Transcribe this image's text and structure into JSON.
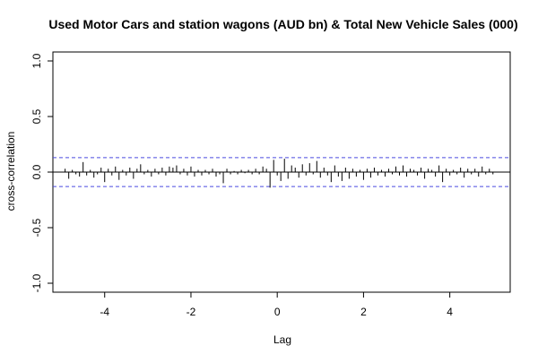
{
  "chart_data": {
    "type": "bar",
    "title": "Used Motor Cars and station wagons (AUD bn) & Total New Vehicle Sales (000)",
    "xlabel": "Lag",
    "ylabel": "cross-correlation",
    "xlim": [
      -5.2,
      5.4
    ],
    "ylim": [
      -1.05,
      1.05
    ],
    "x_ticks": [
      -4,
      -2,
      0,
      2,
      4
    ],
    "y_ticks": [
      -1.0,
      -0.5,
      0.0,
      0.5,
      1.0
    ],
    "x_tick_labels": [
      "-4",
      "-2",
      "0",
      "2",
      "4"
    ],
    "y_tick_labels": [
      "-1.0",
      "-0.5",
      "0.0",
      "0.5",
      "1.0"
    ],
    "confidence_bound": 0.13,
    "confidence_line_color": "#4a4ae0",
    "zero_line": true,
    "grid": false,
    "lag_step": 0.0833,
    "x": [
      -4.917,
      -4.833,
      -4.75,
      -4.667,
      -4.583,
      -4.5,
      -4.417,
      -4.333,
      -4.25,
      -4.167,
      -4.083,
      -4.0,
      -3.917,
      -3.833,
      -3.75,
      -3.667,
      -3.583,
      -3.5,
      -3.417,
      -3.333,
      -3.25,
      -3.167,
      -3.083,
      -3.0,
      -2.917,
      -2.833,
      -2.75,
      -2.667,
      -2.583,
      -2.5,
      -2.417,
      -2.333,
      -2.25,
      -2.167,
      -2.083,
      -2.0,
      -1.917,
      -1.833,
      -1.75,
      -1.667,
      -1.583,
      -1.5,
      -1.417,
      -1.333,
      -1.25,
      -1.167,
      -1.083,
      -1.0,
      -0.917,
      -0.833,
      -0.75,
      -0.667,
      -0.583,
      -0.5,
      -0.417,
      -0.333,
      -0.25,
      -0.167,
      -0.083,
      0.0,
      0.083,
      0.167,
      0.25,
      0.333,
      0.417,
      0.5,
      0.583,
      0.667,
      0.75,
      0.833,
      0.917,
      1.0,
      1.083,
      1.167,
      1.25,
      1.333,
      1.417,
      1.5,
      1.583,
      1.667,
      1.75,
      1.833,
      1.917,
      2.0,
      2.083,
      2.167,
      2.25,
      2.333,
      2.417,
      2.5,
      2.583,
      2.667,
      2.75,
      2.833,
      2.917,
      3.0,
      3.083,
      3.167,
      3.25,
      3.333,
      3.417,
      3.5,
      3.583,
      3.667,
      3.75,
      3.833,
      3.917,
      4.0,
      4.083,
      4.167,
      4.25,
      4.333,
      4.417,
      4.5,
      4.583,
      4.667,
      4.75,
      4.833,
      4.917,
      5.0
    ],
    "values": [
      0.03,
      -0.06,
      0.02,
      -0.02,
      -0.04,
      0.09,
      -0.03,
      0.02,
      -0.05,
      -0.02,
      0.04,
      -0.09,
      0.03,
      -0.03,
      0.05,
      -0.07,
      0.02,
      -0.03,
      0.04,
      -0.06,
      0.03,
      0.07,
      -0.02,
      0.02,
      -0.04,
      0.03,
      -0.02,
      0.04,
      -0.03,
      0.05,
      0.04,
      0.06,
      -0.02,
      0.03,
      -0.03,
      0.05,
      -0.04,
      0.02,
      -0.03,
      0.02,
      -0.02,
      0.03,
      -0.04,
      -0.02,
      -0.1,
      0.03,
      -0.02,
      0.01,
      -0.02,
      0.02,
      -0.01,
      0.02,
      -0.02,
      0.03,
      -0.02,
      0.05,
      0.03,
      -0.14,
      0.11,
      -0.03,
      -0.08,
      0.12,
      -0.06,
      0.06,
      0.04,
      -0.05,
      0.07,
      -0.03,
      0.08,
      -0.02,
      0.1,
      -0.05,
      0.04,
      -0.03,
      -0.09,
      0.06,
      -0.04,
      -0.08,
      0.04,
      -0.06,
      0.03,
      -0.04,
      0.02,
      -0.07,
      0.03,
      -0.05,
      0.04,
      -0.03,
      0.02,
      -0.04,
      0.03,
      -0.02,
      0.05,
      -0.03,
      0.06,
      -0.04,
      0.03,
      0.02,
      -0.03,
      0.04,
      -0.06,
      0.03,
      0.02,
      -0.04,
      0.06,
      -0.09,
      0.03,
      -0.03,
      0.02,
      -0.02,
      0.04,
      -0.05,
      0.03,
      -0.02,
      0.03,
      -0.04,
      0.05,
      -0.02,
      0.03,
      -0.02
    ]
  }
}
